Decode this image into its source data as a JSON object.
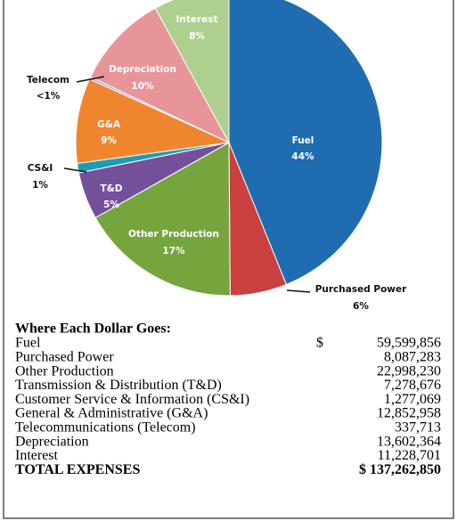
{
  "chart_data": {
    "type": "pie",
    "categories": [
      "Fuel",
      "Purchased Power",
      "Other Production",
      "T&D",
      "CS&I",
      "G&A",
      "Telecom",
      "Depreciation",
      "Interest"
    ],
    "values": [
      44,
      6,
      17,
      5,
      1,
      9,
      0.25,
      10,
      8
    ],
    "value_labels": [
      "44%",
      "6%",
      "17%",
      "5%",
      "1%",
      "9%",
      "<1%",
      "10%",
      "8%"
    ],
    "colors": [
      "#1f6db0",
      "#c9403f",
      "#77a53d",
      "#75509a",
      "#1f9cb5",
      "#f08530",
      "#a6a6d6",
      "#e8959a",
      "#afcf8f"
    ]
  },
  "table": {
    "title": "Where Each Dollar Goes:",
    "rows": [
      [
        "Fuel",
        "$",
        "59,599,856"
      ],
      [
        "Purchased Power",
        "8,087,283"
      ],
      [
        "Other Production",
        "22,998,230"
      ],
      [
        "Transmission & Distribution (T&D)",
        "7,278,676"
      ],
      [
        "Customer Service & Information (CS&I)",
        "1,277,069"
      ],
      [
        "General & Administrative (G&A)",
        "12,852,958"
      ],
      [
        "Telecommunications (Telecom)",
        "337,713"
      ],
      [
        "Depreciation",
        "13,602,364"
      ],
      [
        "Interest",
        "11,228,701"
      ]
    ],
    "total": [
      "TOTAL EXPENSES",
      "$ 137,262,850"
    ]
  }
}
